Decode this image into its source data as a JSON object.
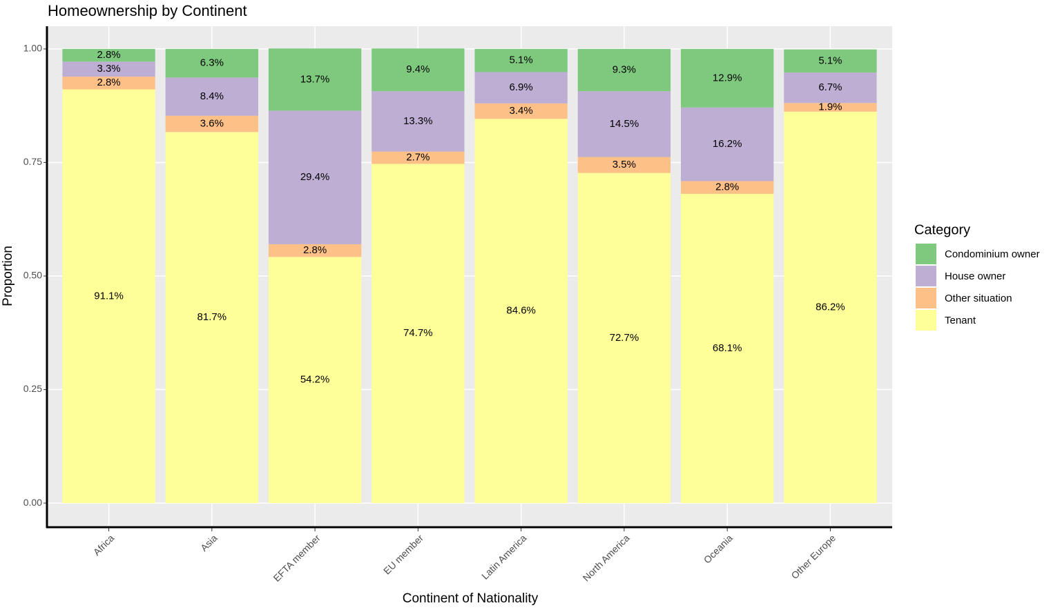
{
  "chart_data": {
    "type": "bar",
    "stacked": true,
    "title": "Homeownership by Continent",
    "x_label": "Continent of Nationality",
    "y_label": "Proportion",
    "legend_title": "Category",
    "legend_position": "right",
    "grid": true,
    "categories": [
      "Africa",
      "Asia",
      "EFTA member",
      "EU member",
      "Latin America",
      "North America",
      "Oceania",
      "Other Europe"
    ],
    "series": [
      {
        "name": "Condominium owner",
        "color": "#7fc97f",
        "values": [
          0.028,
          0.063,
          0.137,
          0.094,
          0.051,
          0.093,
          0.129,
          0.051
        ],
        "value_labels": [
          "2.8%",
          "6.3%",
          "13.7%",
          "9.4%",
          "5.1%",
          "9.3%",
          "12.9%",
          "5.1%"
        ]
      },
      {
        "name": "House owner",
        "color": "#beaed4",
        "values": [
          0.033,
          0.084,
          0.294,
          0.133,
          0.069,
          0.145,
          0.162,
          0.067
        ],
        "value_labels": [
          "3.3%",
          "8.4%",
          "29.4%",
          "13.3%",
          "6.9%",
          "14.5%",
          "16.2%",
          "6.7%"
        ]
      },
      {
        "name": "Other situation",
        "color": "#fdc086",
        "values": [
          0.028,
          0.036,
          0.028,
          0.027,
          0.034,
          0.035,
          0.028,
          0.019
        ],
        "value_labels": [
          "2.8%",
          "3.6%",
          "2.8%",
          "2.7%",
          "3.4%",
          "3.5%",
          "2.8%",
          "1.9%"
        ]
      },
      {
        "name": "Tenant",
        "color": "#ffff99",
        "values": [
          0.911,
          0.817,
          0.542,
          0.747,
          0.846,
          0.727,
          0.681,
          0.862
        ],
        "value_labels": [
          "91.1%",
          "81.7%",
          "54.2%",
          "74.7%",
          "84.6%",
          "72.7%",
          "68.1%",
          "86.2%"
        ]
      }
    ],
    "ylim": [
      -0.05,
      1.05
    ],
    "yticks": [
      {
        "value": 0,
        "label": "0.00"
      },
      {
        "value": 0.25,
        "label": "0.25"
      },
      {
        "value": 0.5,
        "label": "0.50"
      },
      {
        "value": 0.75,
        "label": "0.75"
      },
      {
        "value": 1,
        "label": "1.00"
      }
    ]
  }
}
